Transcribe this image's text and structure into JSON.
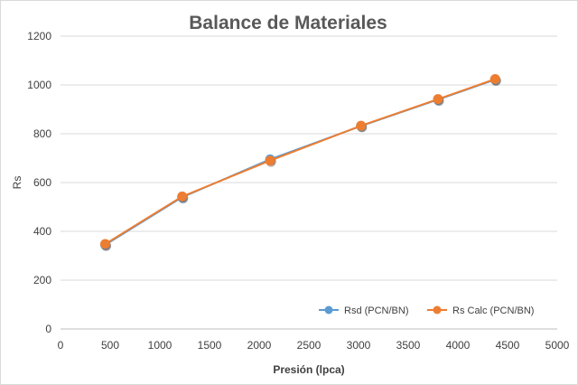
{
  "chart_data": {
    "type": "scatter",
    "title": "Balance de Materiales",
    "xlabel": "Presión (lpca)",
    "ylabel": "Rs",
    "xlim": [
      0,
      5000
    ],
    "ylim": [
      0,
      1200
    ],
    "xticks": [
      0,
      500,
      1000,
      1500,
      2000,
      2500,
      3000,
      3500,
      4000,
      4500,
      5000
    ],
    "yticks": [
      0,
      200,
      400,
      600,
      800,
      1000,
      1200
    ],
    "grid": "horizontal",
    "legend_position": "bottom-right",
    "series": [
      {
        "name": "Rsd (PCN/BN)",
        "color": "#5b9bd5",
        "x": [
          450,
          1225,
          2110,
          3025,
          3800,
          4375
        ],
        "y": [
          345,
          540,
          695,
          832,
          940,
          1022
        ]
      },
      {
        "name": "Rs Calc (PCN/BN)",
        "color": "#ed7d31",
        "x": [
          450,
          1225,
          2110,
          3025,
          3800,
          4375
        ],
        "y": [
          348,
          543,
          690,
          833,
          942,
          1024
        ]
      }
    ]
  }
}
